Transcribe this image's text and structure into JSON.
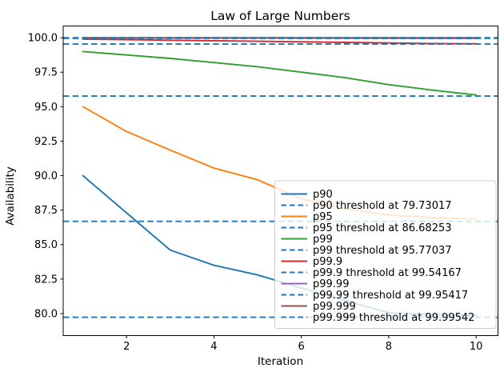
{
  "chart_data": {
    "type": "line",
    "title": "Law of Large Numbers",
    "xlabel": "Iteration",
    "ylabel": "Availability",
    "x": [
      1,
      2,
      3,
      4,
      5,
      6,
      7,
      8,
      9,
      10
    ],
    "xlim": [
      0.55,
      10.5
    ],
    "ylim": [
      78.4,
      100.85
    ],
    "grid": false,
    "legend_position": "lower right",
    "xticks": {
      "values": [
        2,
        4,
        6,
        8,
        10
      ],
      "labels": [
        "2",
        "4",
        "6",
        "8",
        "10"
      ]
    },
    "yticks": {
      "values": [
        80.0,
        82.5,
        85.0,
        87.5,
        90.0,
        92.5,
        95.0,
        97.5,
        100.0
      ],
      "labels": [
        "80.0",
        "82.5",
        "85.0",
        "87.5",
        "90.0",
        "92.5",
        "95.0",
        "97.5",
        "100.0"
      ]
    },
    "colors": {
      "p90": "#1f77b4",
      "p95": "#ff7f0e",
      "p99": "#2ca02c",
      "p99_9": "#d62728",
      "p99_99": "#9467bd",
      "p99_999": "#8c564b",
      "threshold": "#1f77b4"
    },
    "series": [
      {
        "name": "p90",
        "label": "p90",
        "color": "#1f77b4",
        "style": "solid",
        "values": [
          90.0,
          87.3,
          84.6,
          83.5,
          82.8,
          81.85,
          80.95,
          80.05,
          79.95,
          79.85
        ]
      },
      {
        "name": "p90-threshold",
        "label": "p90 threshold at 79.73017",
        "color": "#1f77b4",
        "style": "dashed",
        "threshold": 79.73017
      },
      {
        "name": "p95",
        "label": "p95",
        "color": "#ff7f0e",
        "style": "solid",
        "values": [
          95.0,
          93.2,
          91.85,
          90.55,
          89.7,
          88.3,
          87.6,
          87.15,
          86.95,
          86.85
        ]
      },
      {
        "name": "p95-threshold",
        "label": "p95 threshold at 86.68253",
        "color": "#1f77b4",
        "style": "dashed",
        "threshold": 86.68253
      },
      {
        "name": "p99",
        "label": "p99",
        "color": "#2ca02c",
        "style": "solid",
        "values": [
          99.0,
          98.75,
          98.5,
          98.2,
          97.9,
          97.5,
          97.1,
          96.6,
          96.2,
          95.85
        ]
      },
      {
        "name": "p99-threshold",
        "label": "p99 threshold at 95.77037",
        "color": "#1f77b4",
        "style": "dashed",
        "threshold": 95.77037
      },
      {
        "name": "p99.9",
        "label": "p99.9",
        "color": "#d62728",
        "style": "solid",
        "values": [
          99.9,
          99.86,
          99.82,
          99.78,
          99.74,
          99.7,
          99.66,
          99.62,
          99.58,
          99.56
        ]
      },
      {
        "name": "p99.9-threshold",
        "label": "p99.9 threshold at 99.54167",
        "color": "#1f77b4",
        "style": "dashed",
        "threshold": 99.54167
      },
      {
        "name": "p99.99",
        "label": "p99.99",
        "color": "#9467bd",
        "style": "solid",
        "values": [
          99.99,
          99.986,
          99.982,
          99.978,
          99.974,
          99.97,
          99.966,
          99.962,
          99.958,
          99.956
        ]
      },
      {
        "name": "p99.99-threshold",
        "label": "p99.99 threshold at 99.95417",
        "color": "#1f77b4",
        "style": "dashed",
        "threshold": 99.95417
      },
      {
        "name": "p99.999",
        "label": "p99.999",
        "color": "#8c564b",
        "style": "solid",
        "values": [
          99.999,
          99.9986,
          99.9982,
          99.9978,
          99.9974,
          99.997,
          99.9966,
          99.9962,
          99.9958,
          99.9956
        ]
      },
      {
        "name": "p99.999-threshold",
        "label": "p99.999 threshold at 99.99542",
        "color": "#1f77b4",
        "style": "dashed",
        "threshold": 99.99542
      }
    ]
  }
}
